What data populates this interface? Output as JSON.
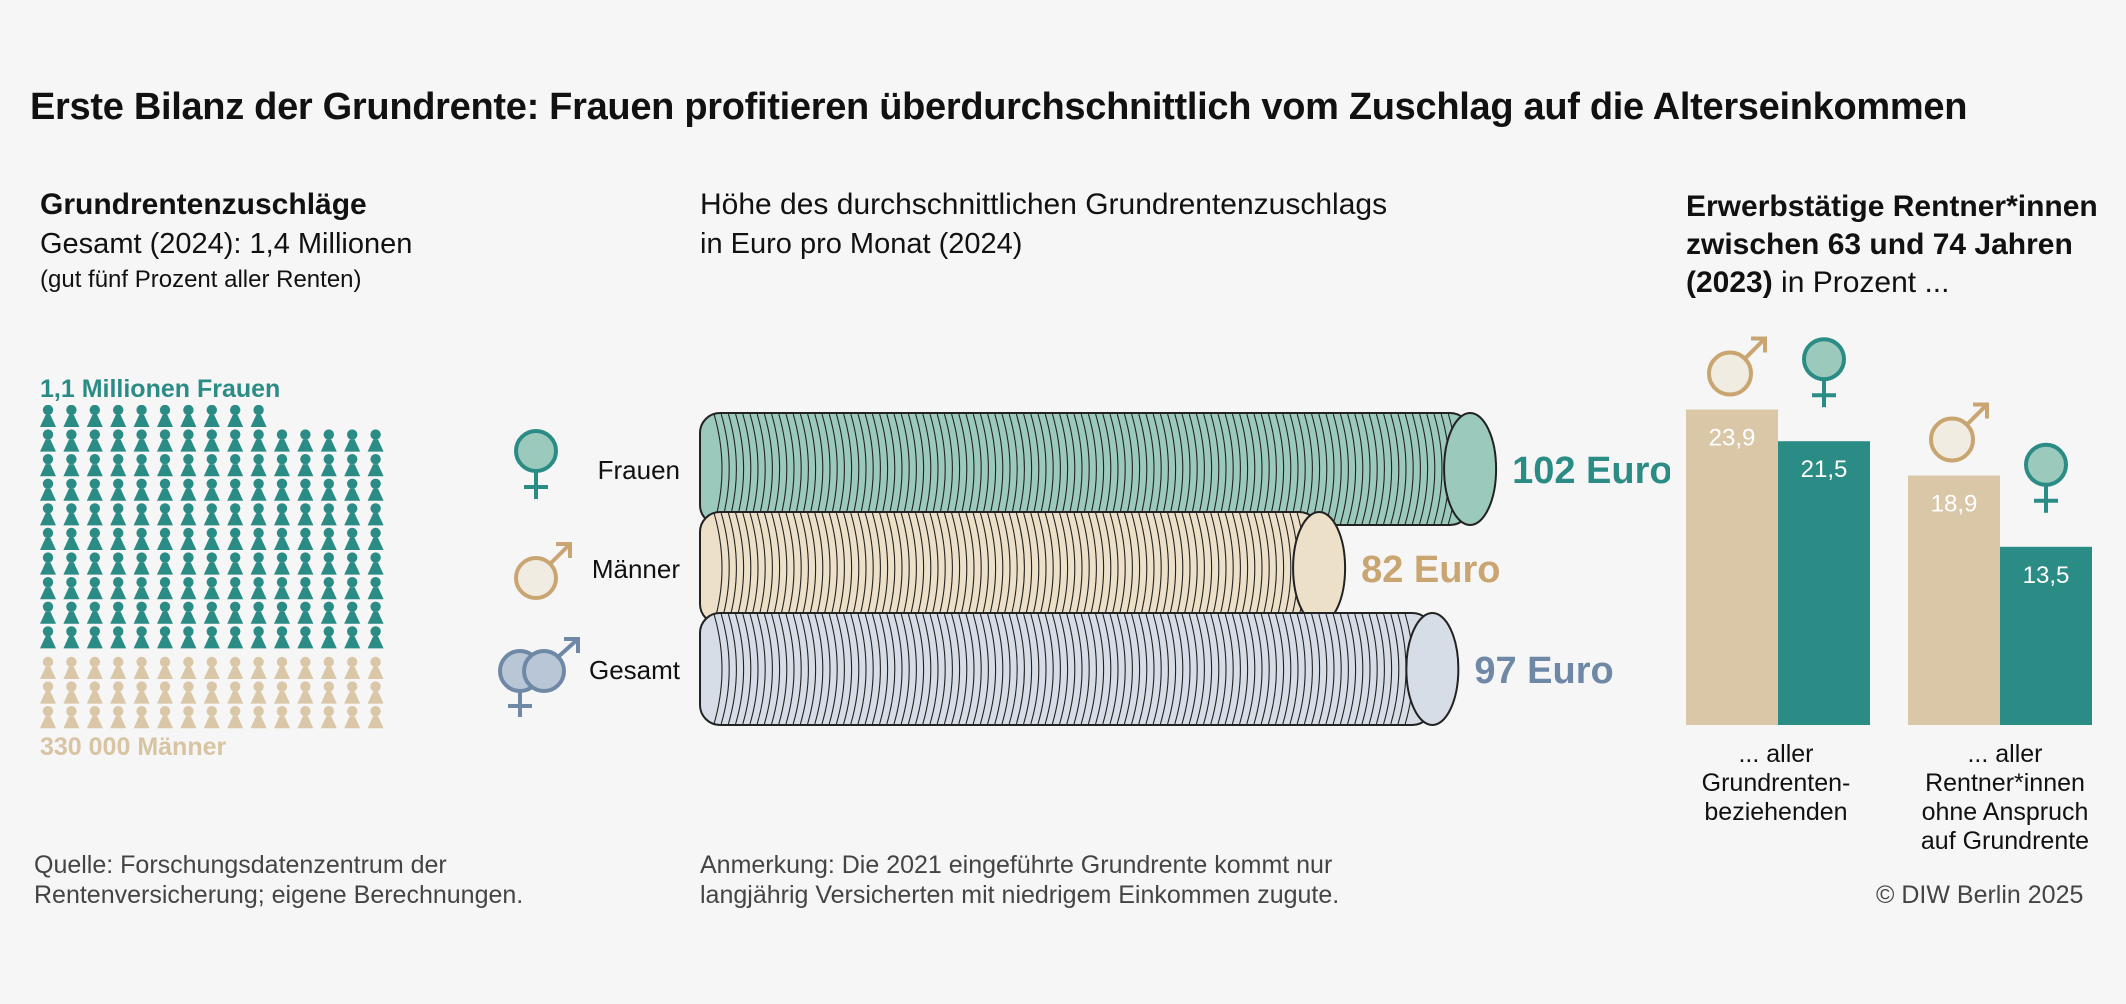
{
  "title": "Erste Bilanz der Grundrente: Frauen profitieren überdurchschnittlich vom Zuschlag auf die Alterseinkommen",
  "left": {
    "heading": "Grundrentenzuschläge",
    "line2": "Gesamt (2024): 1,4 Millionen",
    "line3": "(gut fünf Prozent aller Renten)",
    "women_label": "1,1 Millionen Frauen",
    "men_label": "330 000 Männer",
    "colors": {
      "women": "#2b8c86",
      "men": "#d9c7a7"
    }
  },
  "middle": {
    "heading": "Höhe des durchschnittlichen Grundrentenzuschlags",
    "subheading": "in Euro pro Monat (2024)"
  },
  "right": {
    "heading_line1": "Erwerbstätige Rentner*innen",
    "heading_line2": "zwischen 63 und 74 Jahren",
    "heading_line3_bold": "(2023)",
    "heading_line3_rest": " in Prozent ..."
  },
  "footer": {
    "source_line1": "Quelle: Forschungsdatenzentrum der",
    "source_line2": "Rentenversicherung; eigene Berechnungen.",
    "note_line1": "Anmerkung: Die 2021 eingeführte Grundrente kommt nur",
    "note_line2": "langjährig Versicherten mit niedrigem Einkommen zugute.",
    "copyright": "© DIW Berlin 2025"
  },
  "chart_data": [
    {
      "type": "pictogram",
      "categories": [
        "1,1 Millionen Frauen",
        "330 000 Männer"
      ],
      "values": [
        1100000,
        330000
      ],
      "total_label": "Gesamt (2024): 1,4 Millionen"
    },
    {
      "type": "bar",
      "orientation": "horizontal",
      "categories": [
        "Frauen",
        "Männer",
        "Gesamt"
      ],
      "values": [
        102,
        82,
        97
      ],
      "value_labels": [
        "102 Euro",
        "82 Euro",
        "97 Euro"
      ],
      "icons": [
        "female-icon",
        "male-icon",
        "female-male-icon"
      ],
      "colors": [
        "#2b8c86",
        "#c9a571",
        "#6e88a6"
      ],
      "fills": [
        "#9bc9bc",
        "#ece0c8",
        "#d6dde6"
      ]
    },
    {
      "type": "bar",
      "categories": [
        "... aller Grundrenten-beziehenden",
        "... aller Rentner*innen ohne Anspruch auf Grundrente"
      ],
      "category_lines": [
        [
          "... aller",
          "Grundrenten-",
          "beziehenden"
        ],
        [
          "... aller",
          "Rentner*innen",
          "ohne Anspruch",
          "auf Grundrente"
        ]
      ],
      "series": [
        {
          "name": "Männer",
          "icon": "male-icon",
          "values": [
            23.9,
            18.9
          ],
          "labels": [
            "23,9",
            "18,9"
          ],
          "color": "#d9c7a7"
        },
        {
          "name": "Frauen",
          "icon": "female-icon",
          "values": [
            21.5,
            13.5
          ],
          "labels": [
            "21,5",
            "13,5"
          ],
          "color": "#2b8c86"
        }
      ],
      "ylim": [
        0,
        25
      ]
    }
  ]
}
